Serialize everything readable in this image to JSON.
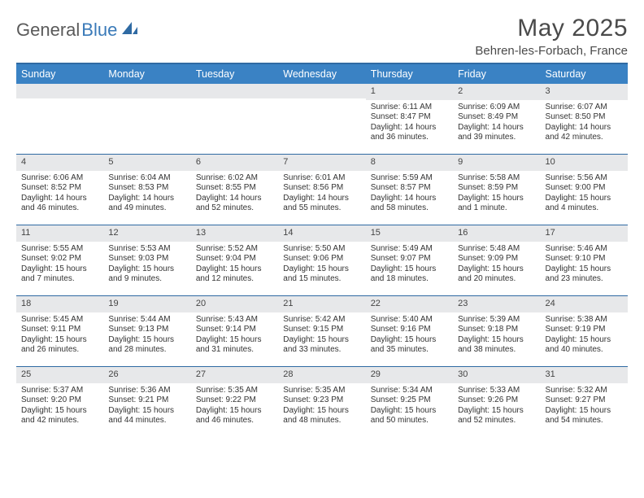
{
  "brand": {
    "name_a": "General",
    "name_b": "Blue"
  },
  "title": "May 2025",
  "location": "Behren-les-Forbach, France",
  "colors": {
    "header_bg": "#3a82c4",
    "header_text": "#ffffff",
    "rule": "#2f6aa3",
    "daynum_bg": "#e7e8ea",
    "body_text": "#333333",
    "title_text": "#4a4a4a"
  },
  "typography": {
    "title_fontsize": 30,
    "location_fontsize": 15,
    "dow_fontsize": 12.5,
    "cell_fontsize": 10,
    "daynum_fontsize": 11
  },
  "day_names": [
    "Sunday",
    "Monday",
    "Tuesday",
    "Wednesday",
    "Thursday",
    "Friday",
    "Saturday"
  ],
  "weeks": [
    [
      {
        "n": "",
        "lines": []
      },
      {
        "n": "",
        "lines": []
      },
      {
        "n": "",
        "lines": []
      },
      {
        "n": "",
        "lines": []
      },
      {
        "n": "1",
        "lines": [
          "Sunrise: 6:11 AM",
          "Sunset: 8:47 PM",
          "Daylight: 14 hours",
          "and 36 minutes."
        ]
      },
      {
        "n": "2",
        "lines": [
          "Sunrise: 6:09 AM",
          "Sunset: 8:49 PM",
          "Daylight: 14 hours",
          "and 39 minutes."
        ]
      },
      {
        "n": "3",
        "lines": [
          "Sunrise: 6:07 AM",
          "Sunset: 8:50 PM",
          "Daylight: 14 hours",
          "and 42 minutes."
        ]
      }
    ],
    [
      {
        "n": "4",
        "lines": [
          "Sunrise: 6:06 AM",
          "Sunset: 8:52 PM",
          "Daylight: 14 hours",
          "and 46 minutes."
        ]
      },
      {
        "n": "5",
        "lines": [
          "Sunrise: 6:04 AM",
          "Sunset: 8:53 PM",
          "Daylight: 14 hours",
          "and 49 minutes."
        ]
      },
      {
        "n": "6",
        "lines": [
          "Sunrise: 6:02 AM",
          "Sunset: 8:55 PM",
          "Daylight: 14 hours",
          "and 52 minutes."
        ]
      },
      {
        "n": "7",
        "lines": [
          "Sunrise: 6:01 AM",
          "Sunset: 8:56 PM",
          "Daylight: 14 hours",
          "and 55 minutes."
        ]
      },
      {
        "n": "8",
        "lines": [
          "Sunrise: 5:59 AM",
          "Sunset: 8:57 PM",
          "Daylight: 14 hours",
          "and 58 minutes."
        ]
      },
      {
        "n": "9",
        "lines": [
          "Sunrise: 5:58 AM",
          "Sunset: 8:59 PM",
          "Daylight: 15 hours",
          "and 1 minute."
        ]
      },
      {
        "n": "10",
        "lines": [
          "Sunrise: 5:56 AM",
          "Sunset: 9:00 PM",
          "Daylight: 15 hours",
          "and 4 minutes."
        ]
      }
    ],
    [
      {
        "n": "11",
        "lines": [
          "Sunrise: 5:55 AM",
          "Sunset: 9:02 PM",
          "Daylight: 15 hours",
          "and 7 minutes."
        ]
      },
      {
        "n": "12",
        "lines": [
          "Sunrise: 5:53 AM",
          "Sunset: 9:03 PM",
          "Daylight: 15 hours",
          "and 9 minutes."
        ]
      },
      {
        "n": "13",
        "lines": [
          "Sunrise: 5:52 AM",
          "Sunset: 9:04 PM",
          "Daylight: 15 hours",
          "and 12 minutes."
        ]
      },
      {
        "n": "14",
        "lines": [
          "Sunrise: 5:50 AM",
          "Sunset: 9:06 PM",
          "Daylight: 15 hours",
          "and 15 minutes."
        ]
      },
      {
        "n": "15",
        "lines": [
          "Sunrise: 5:49 AM",
          "Sunset: 9:07 PM",
          "Daylight: 15 hours",
          "and 18 minutes."
        ]
      },
      {
        "n": "16",
        "lines": [
          "Sunrise: 5:48 AM",
          "Sunset: 9:09 PM",
          "Daylight: 15 hours",
          "and 20 minutes."
        ]
      },
      {
        "n": "17",
        "lines": [
          "Sunrise: 5:46 AM",
          "Sunset: 9:10 PM",
          "Daylight: 15 hours",
          "and 23 minutes."
        ]
      }
    ],
    [
      {
        "n": "18",
        "lines": [
          "Sunrise: 5:45 AM",
          "Sunset: 9:11 PM",
          "Daylight: 15 hours",
          "and 26 minutes."
        ]
      },
      {
        "n": "19",
        "lines": [
          "Sunrise: 5:44 AM",
          "Sunset: 9:13 PM",
          "Daylight: 15 hours",
          "and 28 minutes."
        ]
      },
      {
        "n": "20",
        "lines": [
          "Sunrise: 5:43 AM",
          "Sunset: 9:14 PM",
          "Daylight: 15 hours",
          "and 31 minutes."
        ]
      },
      {
        "n": "21",
        "lines": [
          "Sunrise: 5:42 AM",
          "Sunset: 9:15 PM",
          "Daylight: 15 hours",
          "and 33 minutes."
        ]
      },
      {
        "n": "22",
        "lines": [
          "Sunrise: 5:40 AM",
          "Sunset: 9:16 PM",
          "Daylight: 15 hours",
          "and 35 minutes."
        ]
      },
      {
        "n": "23",
        "lines": [
          "Sunrise: 5:39 AM",
          "Sunset: 9:18 PM",
          "Daylight: 15 hours",
          "and 38 minutes."
        ]
      },
      {
        "n": "24",
        "lines": [
          "Sunrise: 5:38 AM",
          "Sunset: 9:19 PM",
          "Daylight: 15 hours",
          "and 40 minutes."
        ]
      }
    ],
    [
      {
        "n": "25",
        "lines": [
          "Sunrise: 5:37 AM",
          "Sunset: 9:20 PM",
          "Daylight: 15 hours",
          "and 42 minutes."
        ]
      },
      {
        "n": "26",
        "lines": [
          "Sunrise: 5:36 AM",
          "Sunset: 9:21 PM",
          "Daylight: 15 hours",
          "and 44 minutes."
        ]
      },
      {
        "n": "27",
        "lines": [
          "Sunrise: 5:35 AM",
          "Sunset: 9:22 PM",
          "Daylight: 15 hours",
          "and 46 minutes."
        ]
      },
      {
        "n": "28",
        "lines": [
          "Sunrise: 5:35 AM",
          "Sunset: 9:23 PM",
          "Daylight: 15 hours",
          "and 48 minutes."
        ]
      },
      {
        "n": "29",
        "lines": [
          "Sunrise: 5:34 AM",
          "Sunset: 9:25 PM",
          "Daylight: 15 hours",
          "and 50 minutes."
        ]
      },
      {
        "n": "30",
        "lines": [
          "Sunrise: 5:33 AM",
          "Sunset: 9:26 PM",
          "Daylight: 15 hours",
          "and 52 minutes."
        ]
      },
      {
        "n": "31",
        "lines": [
          "Sunrise: 5:32 AM",
          "Sunset: 9:27 PM",
          "Daylight: 15 hours",
          "and 54 minutes."
        ]
      }
    ]
  ]
}
